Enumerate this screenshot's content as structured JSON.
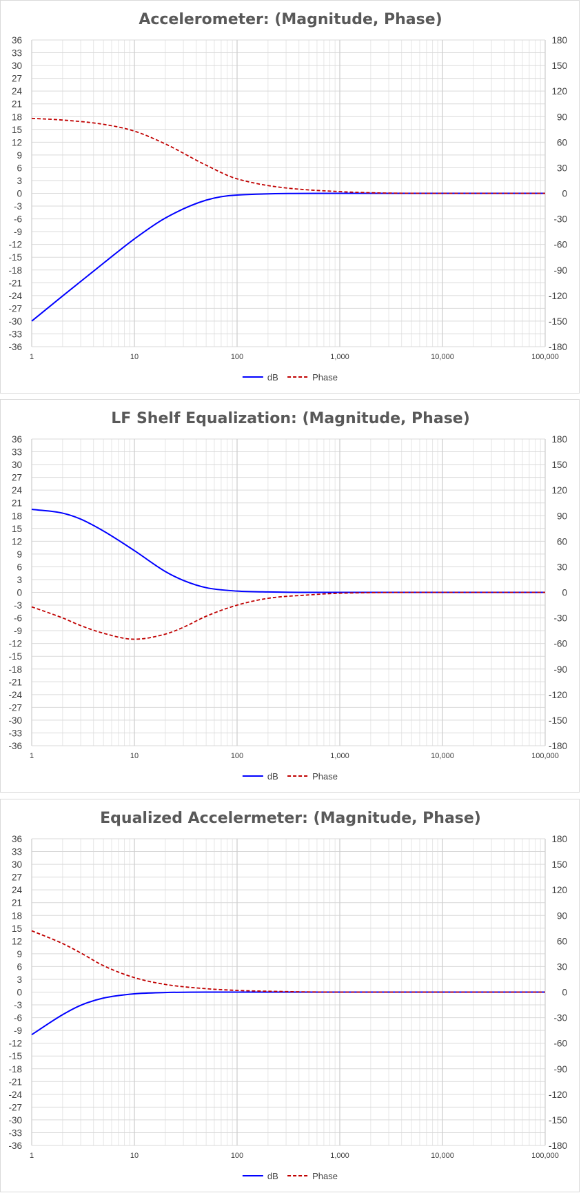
{
  "chart_data": [
    {
      "type": "line",
      "title": "Accelerometer: (Magnitude, Phase)",
      "xlabel": "",
      "ylabel": "",
      "y2label": "",
      "x_scale": "log",
      "xlim": [
        1,
        100000
      ],
      "ylim": [
        -36,
        36
      ],
      "y2lim": [
        -180,
        180
      ],
      "x_ticks": [
        "1",
        "10",
        "100",
        "1,000",
        "10,000",
        "100,000"
      ],
      "y_ticks": [
        "36",
        "33",
        "30",
        "27",
        "24",
        "21",
        "18",
        "15",
        "12",
        "9",
        "6",
        "3",
        "0",
        "-3",
        "-6",
        "-9",
        "-12",
        "-15",
        "-18",
        "-21",
        "-24",
        "-27",
        "-30",
        "-33",
        "-36"
      ],
      "y2_ticks": [
        "180",
        "150",
        "120",
        "90",
        "60",
        "30",
        "0",
        "-30",
        "-60",
        "-90",
        "-120",
        "-150",
        "-180"
      ],
      "grid": true,
      "legend": "bottom",
      "x": [
        1,
        2,
        5,
        10,
        20,
        50,
        100,
        1000,
        10000,
        100000
      ],
      "series": [
        {
          "name": "dB",
          "axis": "left",
          "color": "#0000ff",
          "style": "solid",
          "values": [
            -30,
            -24.1,
            -16.4,
            -10.7,
            -5.8,
            -1.6,
            -0.4,
            0,
            0,
            0
          ]
        },
        {
          "name": "Phase",
          "axis": "right",
          "color": "#c00000",
          "style": "dashed",
          "values": [
            88,
            86,
            81,
            73,
            58,
            33,
            17,
            2,
            0,
            0
          ]
        }
      ]
    },
    {
      "type": "line",
      "title": "LF Shelf Equalization: (Magnitude, Phase)",
      "xlabel": "",
      "ylabel": "",
      "y2label": "",
      "x_scale": "log",
      "xlim": [
        1,
        100000
      ],
      "ylim": [
        -36,
        36
      ],
      "y2lim": [
        -180,
        180
      ],
      "x_ticks": [
        "1",
        "10",
        "100",
        "1,000",
        "10,000",
        "100,000"
      ],
      "y_ticks": [
        "36",
        "33",
        "30",
        "27",
        "24",
        "21",
        "18",
        "15",
        "12",
        "9",
        "6",
        "3",
        "0",
        "-3",
        "-6",
        "-9",
        "-12",
        "-15",
        "-18",
        "-21",
        "-24",
        "-27",
        "-30",
        "-33",
        "-36"
      ],
      "y2_ticks": [
        "180",
        "150",
        "120",
        "90",
        "60",
        "30",
        "0",
        "-30",
        "-60",
        "-90",
        "-120",
        "-150",
        "-180"
      ],
      "grid": true,
      "legend": "bottom",
      "x": [
        1,
        2,
        3,
        5,
        10,
        20,
        30,
        50,
        100,
        200,
        500,
        1000,
        10000,
        100000
      ],
      "series": [
        {
          "name": "dB",
          "axis": "left",
          "color": "#0000ff",
          "style": "solid",
          "values": [
            19.5,
            18.6,
            17.2,
            14.4,
            9.8,
            4.9,
            2.8,
            1.1,
            0.3,
            0.1,
            0,
            0,
            0,
            0
          ]
        },
        {
          "name": "Phase",
          "axis": "right",
          "color": "#c00000",
          "style": "dashed",
          "values": [
            -17,
            -30,
            -39,
            -48,
            -55,
            -49,
            -41,
            -28,
            -15,
            -7,
            -3,
            -1,
            0,
            0
          ]
        }
      ]
    },
    {
      "type": "line",
      "title": "Equalized Accelermeter: (Magnitude, Phase)",
      "xlabel": "",
      "ylabel": "",
      "y2label": "",
      "x_scale": "log",
      "xlim": [
        1,
        100000
      ],
      "ylim": [
        -36,
        36
      ],
      "y2lim": [
        -180,
        180
      ],
      "x_ticks": [
        "1",
        "10",
        "100",
        "1,000",
        "10,000",
        "100,000"
      ],
      "y_ticks": [
        "36",
        "33",
        "30",
        "27",
        "24",
        "21",
        "18",
        "15",
        "12",
        "9",
        "6",
        "3",
        "0",
        "-3",
        "-6",
        "-9",
        "-12",
        "-15",
        "-18",
        "-21",
        "-24",
        "-27",
        "-30",
        "-33",
        "-36"
      ],
      "y2_ticks": [
        "180",
        "150",
        "120",
        "90",
        "60",
        "30",
        "0",
        "-30",
        "-60",
        "-90",
        "-120",
        "-150",
        "-180"
      ],
      "grid": true,
      "legend": "bottom",
      "x": [
        1,
        2,
        3,
        5,
        10,
        20,
        50,
        100,
        200,
        1000,
        10000,
        100000
      ],
      "series": [
        {
          "name": "dB",
          "axis": "left",
          "color": "#0000ff",
          "style": "solid",
          "values": [
            -10,
            -5.3,
            -3.1,
            -1.4,
            -0.4,
            -0.1,
            0,
            0,
            0,
            0,
            0,
            0
          ]
        },
        {
          "name": "Phase",
          "axis": "right",
          "color": "#c00000",
          "style": "dashed",
          "values": [
            72,
            57,
            46,
            31,
            17,
            9,
            4,
            2,
            1,
            0,
            0,
            0
          ]
        }
      ]
    }
  ]
}
